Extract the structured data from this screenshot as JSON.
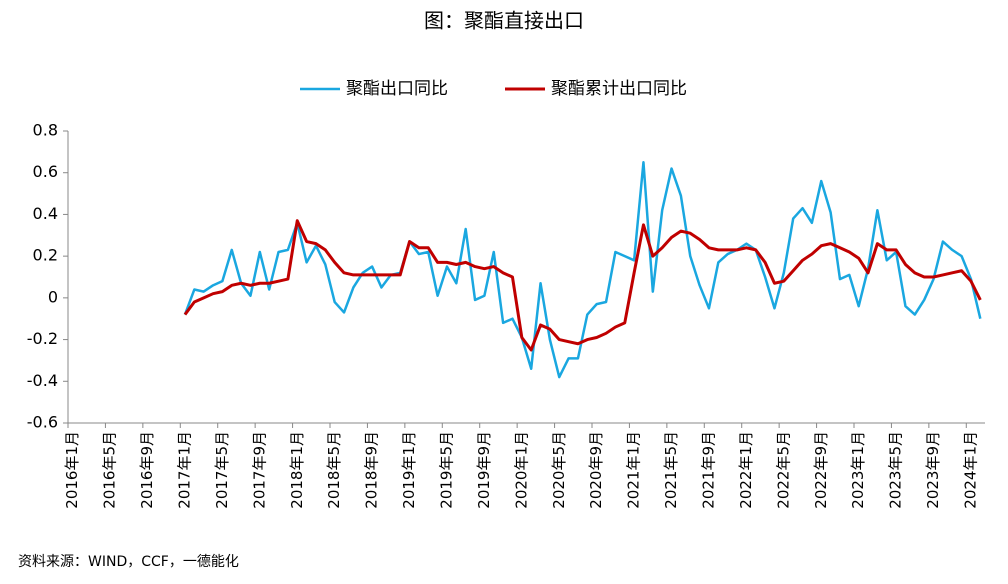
{
  "chart_data": {
    "type": "line",
    "title": "图：聚酯直接出口",
    "source": "资料来源：WIND，CCF，一德能化",
    "categories": [
      "2016年1月",
      null,
      null,
      null,
      "2016年5月",
      null,
      null,
      null,
      "2016年9月",
      null,
      null,
      null,
      "2017年1月",
      null,
      null,
      null,
      "2017年5月",
      null,
      null,
      null,
      "2017年9月",
      null,
      null,
      null,
      "2018年1月",
      null,
      null,
      null,
      "2018年5月",
      null,
      null,
      null,
      "2018年9月",
      null,
      null,
      null,
      "2019年1月",
      null,
      null,
      null,
      "2019年5月",
      null,
      null,
      null,
      "2019年9月",
      null,
      null,
      null,
      "2020年1月",
      null,
      null,
      null,
      "2020年5月",
      null,
      null,
      null,
      "2020年9月",
      null,
      null,
      null,
      "2021年1月",
      null,
      null,
      null,
      "2021年5月",
      null,
      null,
      null,
      "2021年9月",
      null,
      null,
      null,
      "2022年1月",
      null,
      null,
      null,
      "2022年5月",
      null,
      null,
      null,
      "2022年9月",
      null,
      null,
      null,
      "2023年1月",
      null,
      null,
      null,
      "2023年5月",
      null,
      null,
      null,
      "2023年9月",
      null,
      null,
      null,
      "2024年1月",
      null
    ],
    "series": [
      {
        "name": "聚酯出口同比",
        "color": "#1aa7e0",
        "width": 2.5,
        "values": [
          null,
          null,
          null,
          null,
          null,
          null,
          null,
          null,
          null,
          null,
          null,
          null,
          -0.08,
          0.04,
          0.03,
          0.06,
          0.08,
          0.23,
          0.07,
          0.01,
          0.22,
          0.04,
          0.22,
          0.23,
          0.36,
          0.17,
          0.25,
          0.16,
          -0.02,
          -0.07,
          0.05,
          0.12,
          0.15,
          0.05,
          0.11,
          0.12,
          0.27,
          0.21,
          0.22,
          0.01,
          0.15,
          0.07,
          0.33,
          -0.01,
          0.01,
          0.22,
          -0.12,
          -0.1,
          -0.19,
          -0.34,
          0.07,
          -0.2,
          -0.38,
          -0.29,
          -0.29,
          -0.08,
          -0.03,
          -0.02,
          0.22,
          0.2,
          0.18,
          0.65,
          0.03,
          0.42,
          0.62,
          0.49,
          0.2,
          0.06,
          -0.05,
          0.17,
          0.21,
          0.23,
          0.26,
          0.23,
          0.1,
          -0.05,
          0.12,
          0.38,
          0.43,
          0.36,
          0.56,
          0.41,
          0.09,
          0.11,
          -0.04,
          0.14,
          0.42,
          0.18,
          0.22,
          -0.04,
          -0.08,
          -0.01,
          0.09,
          0.27,
          0.23,
          0.2,
          0.09,
          -0.1
        ]
      },
      {
        "name": "聚酯累计出口同比",
        "color": "#c00000",
        "width": 3,
        "values": [
          null,
          null,
          null,
          null,
          null,
          null,
          null,
          null,
          null,
          null,
          null,
          null,
          -0.08,
          -0.02,
          0.0,
          0.02,
          0.03,
          0.06,
          0.07,
          0.06,
          0.07,
          0.07,
          0.08,
          0.09,
          0.37,
          0.27,
          0.26,
          0.23,
          0.17,
          0.12,
          0.11,
          0.11,
          0.11,
          0.11,
          0.11,
          0.11,
          0.27,
          0.24,
          0.24,
          0.17,
          0.17,
          0.16,
          0.17,
          0.15,
          0.14,
          0.15,
          0.12,
          0.1,
          -0.19,
          -0.25,
          -0.13,
          -0.15,
          -0.2,
          -0.21,
          -0.22,
          -0.2,
          -0.19,
          -0.17,
          -0.14,
          -0.12,
          0.12,
          0.35,
          0.2,
          0.24,
          0.29,
          0.32,
          0.31,
          0.28,
          0.24,
          0.23,
          0.23,
          0.23,
          0.24,
          0.23,
          0.17,
          0.07,
          0.08,
          0.13,
          0.18,
          0.21,
          0.25,
          0.26,
          0.24,
          0.22,
          0.19,
          0.12,
          0.26,
          0.23,
          0.23,
          0.16,
          0.12,
          0.1,
          0.1,
          0.11,
          0.12,
          0.13,
          0.08,
          -0.01
        ]
      }
    ],
    "ylim": [
      -0.6,
      0.8
    ],
    "yticks": [
      -0.6,
      -0.4,
      -0.2,
      0,
      0.2,
      0.4,
      0.6,
      0.8
    ],
    "grid": false,
    "legend": "top"
  }
}
